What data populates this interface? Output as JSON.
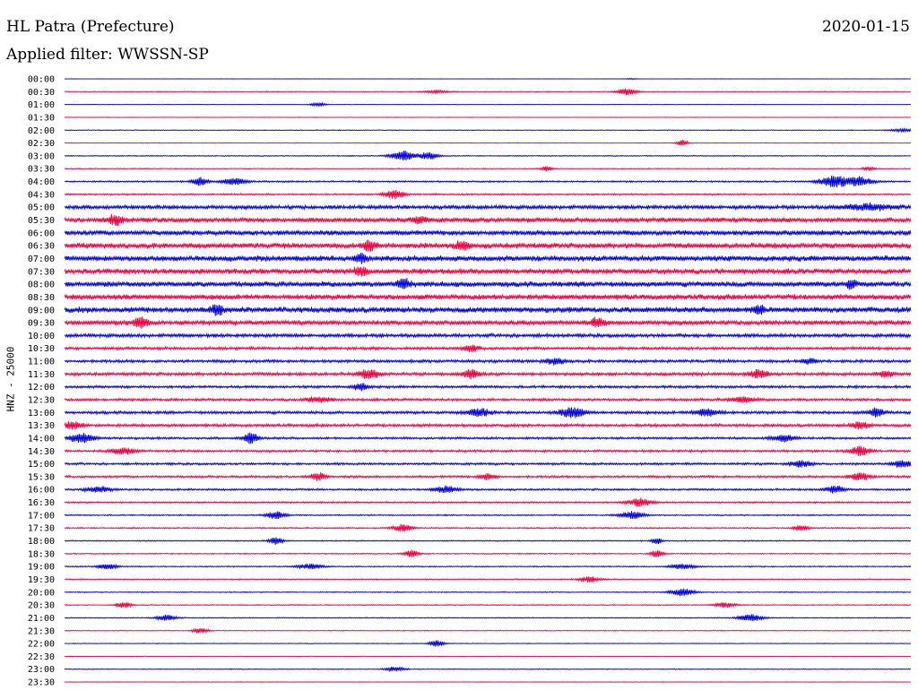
{
  "header": {
    "station": "HL Patra (Prefecture)",
    "date": "2020-01-15",
    "filter": "Applied filter: WWSSN-SP"
  },
  "axis": {
    "channel_label": "HNZ - 25000"
  },
  "colors": {
    "trace_a": "#0000dd",
    "trace_b": "#ee0040",
    "background": "#ffffff"
  },
  "chart_data": {
    "type": "line",
    "title": "HL Patra (Prefecture)",
    "subtitle": "Applied filter: WWSSN-SP",
    "xlabel": "",
    "ylabel": "HNZ - 25000",
    "grid": false,
    "row_minutes": 30,
    "rows": [
      {
        "time": "00:00",
        "noise": 0.2,
        "events": [
          [
            0.67,
            0.6,
            0.004
          ]
        ]
      },
      {
        "time": "00:30",
        "noise": 0.5,
        "events": [
          [
            0.665,
            3.5,
            0.008
          ],
          [
            0.44,
            1.5,
            0.01
          ]
        ]
      },
      {
        "time": "01:00",
        "noise": 0.3,
        "events": [
          [
            0.3,
            2.0,
            0.006
          ]
        ]
      },
      {
        "time": "01:30",
        "noise": 0.3,
        "events": []
      },
      {
        "time": "02:00",
        "noise": 0.5,
        "events": [
          [
            0.99,
            1.5,
            0.01
          ]
        ]
      },
      {
        "time": "02:30",
        "noise": 0.4,
        "events": [
          [
            0.73,
            4.0,
            0.004
          ]
        ]
      },
      {
        "time": "03:00",
        "noise": 0.6,
        "events": [
          [
            0.4,
            5.5,
            0.01
          ],
          [
            0.43,
            4.0,
            0.008
          ]
        ]
      },
      {
        "time": "03:30",
        "noise": 0.6,
        "events": [
          [
            0.57,
            3.0,
            0.004
          ],
          [
            0.95,
            2.0,
            0.005
          ]
        ]
      },
      {
        "time": "04:00",
        "noise": 1.0,
        "events": [
          [
            0.16,
            4.5,
            0.006
          ],
          [
            0.2,
            3.5,
            0.01
          ],
          [
            0.91,
            6.5,
            0.012
          ],
          [
            0.94,
            5.0,
            0.01
          ]
        ]
      },
      {
        "time": "04:30",
        "noise": 1.0,
        "events": [
          [
            0.39,
            5.0,
            0.008
          ]
        ]
      },
      {
        "time": "05:00",
        "noise": 2.4,
        "events": [
          [
            0.95,
            3.0,
            0.02
          ]
        ]
      },
      {
        "time": "05:30",
        "noise": 3.0,
        "events": [
          [
            0.06,
            5.5,
            0.006
          ],
          [
            0.42,
            4.0,
            0.006
          ]
        ]
      },
      {
        "time": "06:00",
        "noise": 3.2,
        "events": []
      },
      {
        "time": "06:30",
        "noise": 3.4,
        "events": [
          [
            0.36,
            6.0,
            0.005
          ],
          [
            0.47,
            5.5,
            0.005
          ]
        ]
      },
      {
        "time": "07:00",
        "noise": 3.6,
        "events": [
          [
            0.35,
            5.0,
            0.005
          ]
        ]
      },
      {
        "time": "07:30",
        "noise": 3.4,
        "events": [
          [
            0.35,
            5.0,
            0.005
          ]
        ]
      },
      {
        "time": "08:00",
        "noise": 3.4,
        "events": [
          [
            0.4,
            6.0,
            0.005
          ],
          [
            0.93,
            5.0,
            0.004
          ]
        ]
      },
      {
        "time": "08:30",
        "noise": 3.4,
        "events": []
      },
      {
        "time": "09:00",
        "noise": 3.6,
        "events": [
          [
            0.18,
            6.0,
            0.005
          ],
          [
            0.82,
            5.0,
            0.005
          ]
        ]
      },
      {
        "time": "09:30",
        "noise": 3.0,
        "events": [
          [
            0.09,
            6.5,
            0.006
          ],
          [
            0.63,
            5.0,
            0.005
          ]
        ]
      },
      {
        "time": "10:00",
        "noise": 2.2,
        "events": []
      },
      {
        "time": "10:30",
        "noise": 1.8,
        "events": [
          [
            0.48,
            4.0,
            0.006
          ]
        ]
      },
      {
        "time": "11:00",
        "noise": 1.8,
        "events": [
          [
            0.58,
            3.5,
            0.008
          ],
          [
            0.88,
            3.0,
            0.006
          ]
        ]
      },
      {
        "time": "11:30",
        "noise": 2.0,
        "events": [
          [
            0.36,
            5.0,
            0.008
          ],
          [
            0.48,
            5.0,
            0.006
          ],
          [
            0.82,
            4.0,
            0.008
          ],
          [
            0.97,
            3.5,
            0.006
          ]
        ]
      },
      {
        "time": "12:00",
        "noise": 1.6,
        "events": [
          [
            0.35,
            4.0,
            0.006
          ]
        ]
      },
      {
        "time": "12:30",
        "noise": 1.6,
        "events": [
          [
            0.3,
            3.0,
            0.01
          ],
          [
            0.8,
            3.0,
            0.01
          ]
        ]
      },
      {
        "time": "13:00",
        "noise": 1.8,
        "events": [
          [
            0.49,
            4.0,
            0.01
          ],
          [
            0.6,
            5.5,
            0.01
          ],
          [
            0.76,
            4.0,
            0.01
          ],
          [
            0.96,
            5.0,
            0.006
          ]
        ]
      },
      {
        "time": "13:30",
        "noise": 1.8,
        "events": [
          [
            0.01,
            4.0,
            0.008
          ],
          [
            0.94,
            3.5,
            0.008
          ]
        ]
      },
      {
        "time": "14:00",
        "noise": 1.4,
        "events": [
          [
            0.02,
            5.0,
            0.01
          ],
          [
            0.22,
            6.0,
            0.006
          ],
          [
            0.85,
            3.5,
            0.01
          ]
        ]
      },
      {
        "time": "14:30",
        "noise": 1.4,
        "events": [
          [
            0.07,
            3.5,
            0.01
          ],
          [
            0.94,
            5.0,
            0.008
          ]
        ]
      },
      {
        "time": "15:00",
        "noise": 1.4,
        "events": [
          [
            0.87,
            3.5,
            0.008
          ],
          [
            0.99,
            4.0,
            0.008
          ]
        ]
      },
      {
        "time": "15:30",
        "noise": 1.4,
        "events": [
          [
            0.3,
            4.5,
            0.006
          ],
          [
            0.5,
            3.5,
            0.006
          ],
          [
            0.94,
            4.0,
            0.008
          ]
        ]
      },
      {
        "time": "16:00",
        "noise": 1.2,
        "events": [
          [
            0.04,
            3.0,
            0.01
          ],
          [
            0.45,
            3.5,
            0.01
          ],
          [
            0.91,
            4.0,
            0.008
          ]
        ]
      },
      {
        "time": "16:30",
        "noise": 1.0,
        "events": [
          [
            0.68,
            4.5,
            0.01
          ]
        ]
      },
      {
        "time": "17:00",
        "noise": 0.8,
        "events": [
          [
            0.25,
            4.0,
            0.008
          ],
          [
            0.67,
            4.0,
            0.01
          ]
        ]
      },
      {
        "time": "17:30",
        "noise": 0.8,
        "events": [
          [
            0.4,
            4.0,
            0.008
          ],
          [
            0.87,
            3.5,
            0.006
          ]
        ]
      },
      {
        "time": "18:00",
        "noise": 0.7,
        "events": [
          [
            0.25,
            4.0,
            0.006
          ],
          [
            0.7,
            3.5,
            0.004
          ]
        ]
      },
      {
        "time": "18:30",
        "noise": 0.7,
        "events": [
          [
            0.41,
            4.0,
            0.006
          ],
          [
            0.7,
            4.0,
            0.005
          ]
        ]
      },
      {
        "time": "19:00",
        "noise": 0.7,
        "events": [
          [
            0.05,
            3.0,
            0.008
          ],
          [
            0.29,
            3.0,
            0.01
          ],
          [
            0.73,
            3.0,
            0.01
          ]
        ]
      },
      {
        "time": "19:30",
        "noise": 0.7,
        "events": [
          [
            0.62,
            3.0,
            0.008
          ]
        ]
      },
      {
        "time": "20:00",
        "noise": 0.6,
        "events": [
          [
            0.73,
            4.0,
            0.01
          ]
        ]
      },
      {
        "time": "20:30",
        "noise": 0.6,
        "events": [
          [
            0.07,
            3.5,
            0.006
          ],
          [
            0.78,
            3.0,
            0.008
          ]
        ]
      },
      {
        "time": "21:00",
        "noise": 0.6,
        "events": [
          [
            0.12,
            3.0,
            0.008
          ],
          [
            0.81,
            4.0,
            0.01
          ]
        ]
      },
      {
        "time": "21:30",
        "noise": 0.5,
        "events": [
          [
            0.16,
            3.0,
            0.006
          ]
        ]
      },
      {
        "time": "22:00",
        "noise": 0.4,
        "events": [
          [
            0.44,
            3.5,
            0.006
          ]
        ]
      },
      {
        "time": "22:30",
        "noise": 0.3,
        "events": []
      },
      {
        "time": "23:00",
        "noise": 0.5,
        "events": [
          [
            0.39,
            2.5,
            0.008
          ]
        ]
      },
      {
        "time": "23:30",
        "noise": 0.3,
        "events": []
      }
    ]
  }
}
